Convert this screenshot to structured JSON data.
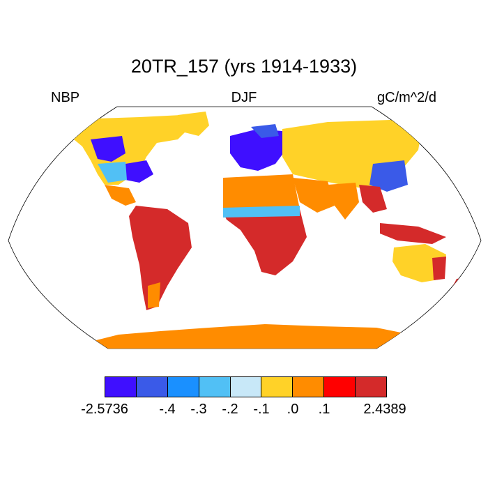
{
  "title": "20TR_157 (yrs 1914-1933)",
  "variable": "NBP",
  "season": "DJF",
  "units": "gC/m^2/d",
  "colorbar": {
    "colors": [
      "#3f0fff",
      "#3a5ae8",
      "#1a90ff",
      "#51c0f5",
      "#c8e8f8",
      "#ffd228",
      "#ff8c00",
      "#ff0000",
      "#d42a2a"
    ],
    "tick_labels": [
      "-2.5736",
      "-.4",
      "-.3",
      "-.2",
      "-.1",
      ".0",
      ".1",
      "2.4389"
    ]
  },
  "map": {
    "projection": "Robinson",
    "background": "#ffffff",
    "land_outline": "#000000"
  }
}
